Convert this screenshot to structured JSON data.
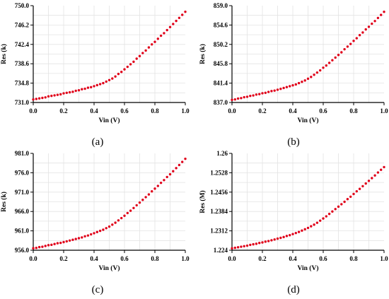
{
  "colors": {
    "points": "#e0001a",
    "axis": "#000000",
    "grid": "#e3e3e3"
  },
  "chart_data": [
    {
      "type": "scatter",
      "panel_label": "(a)",
      "xlabel": "Vin (V)",
      "ylabel": "Res (k)",
      "xlim": [
        0.0,
        1.0
      ],
      "ylim": [
        731.0,
        750.0
      ],
      "xticks": [
        "0.0",
        "0.2",
        "0.4",
        "0.6",
        "0.8",
        "1.0"
      ],
      "yticks": [
        "731.0",
        "734.8",
        "738.6",
        "742.4",
        "746.2",
        "750.0"
      ],
      "grid": true,
      "series": [
        {
          "x": [
            0.0,
            0.02,
            0.04,
            0.06,
            0.08,
            0.1,
            0.12,
            0.14,
            0.16,
            0.18,
            0.2,
            0.22,
            0.24,
            0.26,
            0.28,
            0.3,
            0.32,
            0.34,
            0.36,
            0.38,
            0.4,
            0.42,
            0.44,
            0.46,
            0.48,
            0.5,
            0.52,
            0.54,
            0.56,
            0.58,
            0.6,
            0.62,
            0.64,
            0.66,
            0.68,
            0.7,
            0.72,
            0.74,
            0.76,
            0.78,
            0.8,
            0.82,
            0.84,
            0.86,
            0.88,
            0.9,
            0.92,
            0.94,
            0.96,
            0.98,
            1.0
          ],
          "y": [
            731.6,
            731.7,
            731.8,
            731.9,
            732.0,
            732.2,
            732.3,
            732.4,
            732.5,
            732.6,
            732.8,
            732.9,
            733.0,
            733.1,
            733.3,
            733.4,
            733.6,
            733.7,
            733.9,
            734.0,
            734.2,
            734.4,
            734.6,
            734.8,
            735.1,
            735.4,
            735.7,
            736.1,
            736.6,
            737.0,
            737.5,
            738.0,
            738.5,
            739.0,
            739.6,
            740.1,
            740.7,
            741.2,
            741.8,
            742.4,
            742.9,
            743.5,
            744.1,
            744.6,
            745.2,
            745.8,
            746.4,
            747.0,
            747.6,
            748.2,
            748.8
          ]
        }
      ]
    },
    {
      "type": "scatter",
      "panel_label": "(b)",
      "xlabel": "Vin (V)",
      "ylabel": "Res (k)",
      "xlim": [
        0.0,
        1.0
      ],
      "ylim": [
        837.0,
        859.0
      ],
      "xticks": [
        "0.0",
        "0.2",
        "0.4",
        "0.6",
        "0.8",
        "1.0"
      ],
      "yticks": [
        "837.0",
        "841.4",
        "845.8",
        "850.2",
        "854.6",
        "859.0"
      ],
      "grid": true,
      "series": [
        {
          "x": [
            0.0,
            0.02,
            0.04,
            0.06,
            0.08,
            0.1,
            0.12,
            0.14,
            0.16,
            0.18,
            0.2,
            0.22,
            0.24,
            0.26,
            0.28,
            0.3,
            0.32,
            0.34,
            0.36,
            0.38,
            0.4,
            0.42,
            0.44,
            0.46,
            0.48,
            0.5,
            0.52,
            0.54,
            0.56,
            0.58,
            0.6,
            0.62,
            0.64,
            0.66,
            0.68,
            0.7,
            0.72,
            0.74,
            0.76,
            0.78,
            0.8,
            0.82,
            0.84,
            0.86,
            0.88,
            0.9,
            0.92,
            0.94,
            0.96,
            0.98,
            1.0
          ],
          "y": [
            837.6,
            837.7,
            837.9,
            838.0,
            838.2,
            838.3,
            838.5,
            838.6,
            838.8,
            838.9,
            839.1,
            839.2,
            839.4,
            839.6,
            839.7,
            839.9,
            840.1,
            840.3,
            840.5,
            840.7,
            840.9,
            841.1,
            841.4,
            841.7,
            842.0,
            842.4,
            842.8,
            843.3,
            843.8,
            844.3,
            844.9,
            845.4,
            846.0,
            846.6,
            847.2,
            847.8,
            848.4,
            849.1,
            849.7,
            850.3,
            851.0,
            851.6,
            852.3,
            852.9,
            853.6,
            854.2,
            854.9,
            855.5,
            856.2,
            856.9,
            857.6
          ]
        }
      ]
    },
    {
      "type": "scatter",
      "panel_label": "(c)",
      "xlabel": "Vin (V)",
      "ylabel": "Res (k)",
      "xlim": [
        0.0,
        1.0
      ],
      "ylim": [
        956.0,
        981.0
      ],
      "xticks": [
        "0.0",
        "0.2",
        "0.4",
        "0.6",
        "0.8",
        "1.0"
      ],
      "yticks": [
        "956.0",
        "961.0",
        "966.0",
        "971.0",
        "976.0",
        "981.0"
      ],
      "grid": true,
      "series": [
        {
          "x": [
            0.0,
            0.02,
            0.04,
            0.06,
            0.08,
            0.1,
            0.12,
            0.14,
            0.16,
            0.18,
            0.2,
            0.22,
            0.24,
            0.26,
            0.28,
            0.3,
            0.32,
            0.34,
            0.36,
            0.38,
            0.4,
            0.42,
            0.44,
            0.46,
            0.48,
            0.5,
            0.52,
            0.54,
            0.56,
            0.58,
            0.6,
            0.62,
            0.64,
            0.66,
            0.68,
            0.7,
            0.72,
            0.74,
            0.76,
            0.78,
            0.8,
            0.82,
            0.84,
            0.86,
            0.88,
            0.9,
            0.92,
            0.94,
            0.96,
            0.98,
            1.0
          ],
          "y": [
            956.5,
            956.6,
            956.8,
            956.9,
            957.1,
            957.3,
            957.4,
            957.6,
            957.8,
            957.9,
            958.1,
            958.3,
            958.5,
            958.7,
            958.9,
            959.1,
            959.3,
            959.6,
            959.8,
            960.1,
            960.4,
            960.7,
            961.0,
            961.3,
            961.7,
            962.1,
            962.6,
            963.1,
            963.7,
            964.3,
            964.9,
            965.6,
            966.2,
            966.9,
            967.6,
            968.3,
            969.0,
            969.7,
            970.4,
            971.2,
            971.9,
            972.6,
            973.4,
            974.1,
            974.9,
            975.6,
            976.4,
            977.2,
            978.0,
            978.8,
            979.6
          ]
        }
      ]
    },
    {
      "type": "scatter",
      "panel_label": "(d)",
      "xlabel": "Vin (V)",
      "ylabel": "Res (M)",
      "xlim": [
        0.0,
        1.0
      ],
      "ylim": [
        1.224,
        1.26
      ],
      "xticks": [
        "0.0",
        "0.2",
        "0.4",
        "0.6",
        "0.8",
        "1.0"
      ],
      "yticks": [
        "1.224",
        "1.2312",
        "1.2384",
        "1.2456",
        "1.2528",
        "1.26"
      ],
      "grid": true,
      "series": [
        {
          "x": [
            0.0,
            0.02,
            0.04,
            0.06,
            0.08,
            0.1,
            0.12,
            0.14,
            0.16,
            0.18,
            0.2,
            0.22,
            0.24,
            0.26,
            0.28,
            0.3,
            0.32,
            0.34,
            0.36,
            0.38,
            0.4,
            0.42,
            0.44,
            0.46,
            0.48,
            0.5,
            0.52,
            0.54,
            0.56,
            0.58,
            0.6,
            0.62,
            0.64,
            0.66,
            0.68,
            0.7,
            0.72,
            0.74,
            0.76,
            0.78,
            0.8,
            0.82,
            0.84,
            0.86,
            0.88,
            0.9,
            0.92,
            0.94,
            0.96,
            0.98,
            1.0
          ],
          "y": [
            1.2247,
            1.2249,
            1.2251,
            1.2253,
            1.2255,
            1.2257,
            1.226,
            1.2262,
            1.2264,
            1.2267,
            1.2269,
            1.2272,
            1.2274,
            1.2277,
            1.228,
            1.2283,
            1.2286,
            1.2289,
            1.2293,
            1.2296,
            1.23,
            1.2304,
            1.2308,
            1.2313,
            1.2318,
            1.2323,
            1.2329,
            1.2335,
            1.2342,
            1.235,
            1.2358,
            1.2366,
            1.2375,
            1.2384,
            1.2393,
            1.2402,
            1.2411,
            1.242,
            1.243,
            1.2439,
            1.2449,
            1.2459,
            1.2468,
            1.2478,
            1.2488,
            1.2498,
            1.2508,
            1.2518,
            1.2529,
            1.2539,
            1.2549
          ]
        }
      ]
    }
  ]
}
